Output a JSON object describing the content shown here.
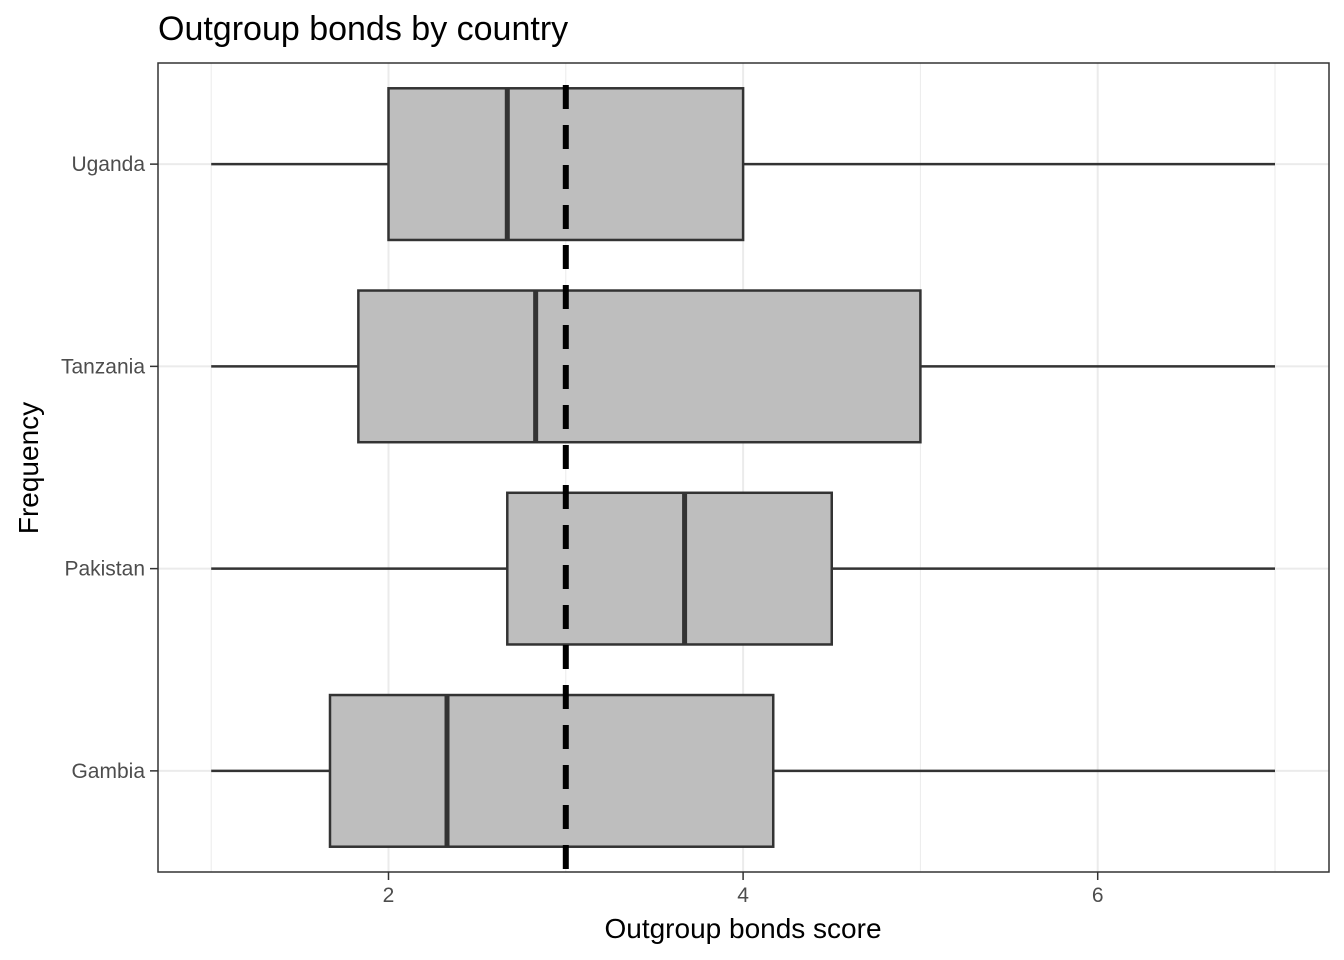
{
  "chart_data": {
    "type": "boxplot",
    "orientation": "horizontal",
    "title": "Outgroup bonds by country",
    "xlabel": "Outgroup bonds score",
    "ylabel": "Frequency",
    "xlim": [
      0.7,
      7.3
    ],
    "x_ticks": [
      2,
      4,
      6
    ],
    "grid": true,
    "reference_line": {
      "x": 3.0,
      "style": "dashed"
    },
    "categories": [
      "Uganda",
      "Tanzania",
      "Pakistan",
      "Gambia"
    ],
    "boxes": [
      {
        "category": "Uganda",
        "min": 1.0,
        "q1": 2.0,
        "median": 2.67,
        "q3": 4.0,
        "max": 7.0
      },
      {
        "category": "Tanzania",
        "min": 1.0,
        "q1": 1.83,
        "median": 2.83,
        "q3": 5.0,
        "max": 7.0
      },
      {
        "category": "Pakistan",
        "min": 1.0,
        "q1": 2.67,
        "median": 3.67,
        "q3": 4.5,
        "max": 7.0
      },
      {
        "category": "Gambia",
        "min": 1.0,
        "q1": 1.67,
        "median": 2.33,
        "q3": 4.17,
        "max": 7.0
      }
    ],
    "colors": {
      "box_fill": "#bebebe",
      "box_stroke": "#333333",
      "grid": "#ebebeb",
      "panel_border": "#333333"
    }
  }
}
